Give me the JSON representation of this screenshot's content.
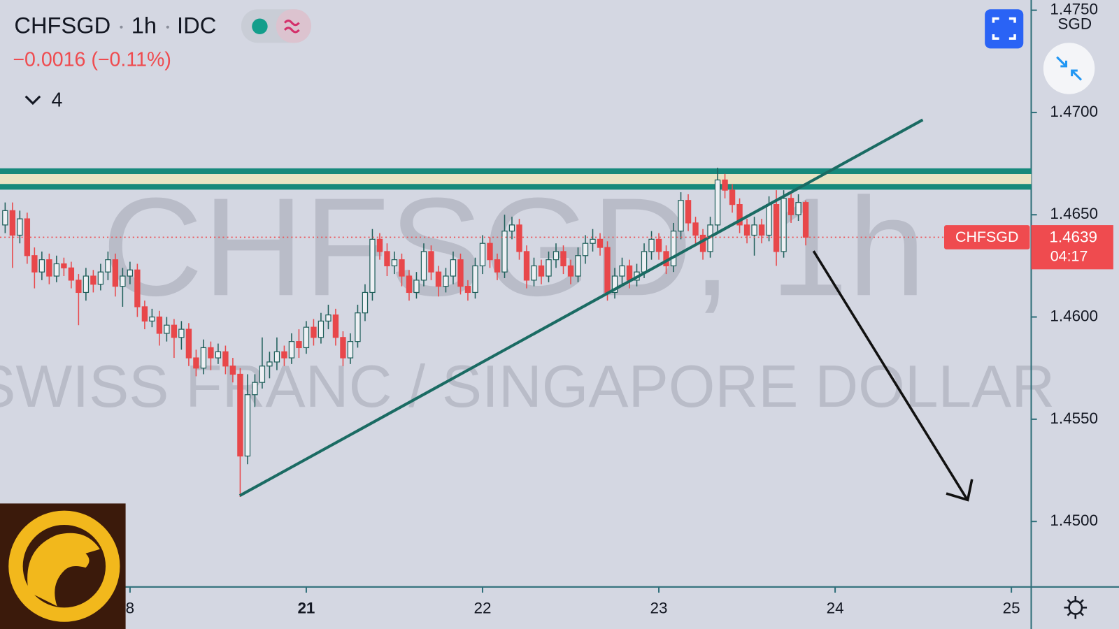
{
  "header": {
    "symbol": "CHFSGD",
    "interval": "1h",
    "source": "IDC",
    "change": "−0.0016 (−0.11%)",
    "indicator_count": 4,
    "currency": "SGD"
  },
  "chart_data": {
    "type": "candlestick",
    "watermark_title": "CHFSGD, 1h",
    "watermark_subtitle": "SWISS FRANC / SINGAPORE DOLLAR",
    "up_color": "#eef0f4",
    "down_color": "#e8474a",
    "outline_color": "#1f5f5a",
    "xlim": [
      -41.7,
      98.7
    ],
    "ylim": [
      1.4468,
      1.4755
    ],
    "xticks": [
      {
        "value": -24,
        "label": "8"
      },
      {
        "value": 0,
        "label": "21"
      },
      {
        "value": 24,
        "label": "22"
      },
      {
        "value": 48,
        "label": "23"
      },
      {
        "value": 72,
        "label": "24"
      },
      {
        "value": 96,
        "label": "25"
      }
    ],
    "yticks": [
      {
        "value": 1.475,
        "label": "1.4750"
      },
      {
        "value": 1.47,
        "label": "1.4700"
      },
      {
        "value": 1.465,
        "label": "1.4650"
      },
      {
        "value": 1.46,
        "label": "1.4600"
      },
      {
        "value": 1.455,
        "label": "1.4550"
      },
      {
        "value": 1.45,
        "label": "1.4500"
      }
    ],
    "last_price": {
      "symbol": "CHFSGD",
      "value": 1.4639,
      "countdown": "04:17",
      "color": "#ef4b4f"
    },
    "x": [
      -41,
      -40,
      -39,
      -38,
      -37,
      -36,
      -35,
      -34,
      -33,
      -32,
      -31,
      -30,
      -29,
      -28,
      -27,
      -26,
      -25,
      -24,
      -23,
      -22,
      -21,
      -20,
      -19,
      -18,
      -17,
      -16,
      -15,
      -14,
      -13,
      -12,
      -11,
      -10,
      -9,
      -8,
      -7,
      -6,
      -5,
      -4,
      -3,
      -2,
      -1,
      0,
      1,
      2,
      3,
      4,
      5,
      6,
      7,
      8,
      9,
      10,
      11,
      12,
      13,
      14,
      15,
      16,
      17,
      18,
      19,
      20,
      21,
      22,
      23,
      24,
      25,
      26,
      27,
      28,
      29,
      30,
      31,
      32,
      33,
      34,
      35,
      36,
      37,
      38,
      39,
      40,
      41,
      42,
      43,
      44,
      45,
      46,
      47,
      48,
      49,
      50,
      51,
      52,
      53,
      54,
      55,
      56,
      57,
      58,
      59,
      60,
      61,
      62,
      63,
      64,
      65,
      66,
      67,
      68
    ],
    "ohlc": [
      [
        1.4645,
        1.4656,
        1.4641,
        1.4652
      ],
      [
        1.4652,
        1.4656,
        1.4624,
        1.464
      ],
      [
        1.464,
        1.4652,
        1.4636,
        1.4648
      ],
      [
        1.4648,
        1.4651,
        1.4626,
        1.463
      ],
      [
        1.463,
        1.4634,
        1.4614,
        1.4622
      ],
      [
        1.4622,
        1.4632,
        1.4618,
        1.4628
      ],
      [
        1.4628,
        1.4631,
        1.4616,
        1.462
      ],
      [
        1.462,
        1.463,
        1.4617,
        1.4626
      ],
      [
        1.4626,
        1.4629,
        1.462,
        1.4624
      ],
      [
        1.4624,
        1.4627,
        1.4614,
        1.4618
      ],
      [
        1.4618,
        1.4621,
        1.4596,
        1.4612
      ],
      [
        1.4612,
        1.4624,
        1.4608,
        1.462
      ],
      [
        1.462,
        1.4623,
        1.4612,
        1.4616
      ],
      [
        1.4616,
        1.4626,
        1.4613,
        1.4622
      ],
      [
        1.4622,
        1.4632,
        1.4618,
        1.4628
      ],
      [
        1.4628,
        1.4631,
        1.461,
        1.4615
      ],
      [
        1.4615,
        1.4624,
        1.4605,
        1.462
      ],
      [
        1.462,
        1.4627,
        1.4616,
        1.4623
      ],
      [
        1.4623,
        1.4626,
        1.46,
        1.4605
      ],
      [
        1.4605,
        1.4608,
        1.4594,
        1.4598
      ],
      [
        1.4598,
        1.4604,
        1.4595,
        1.46
      ],
      [
        1.46,
        1.4603,
        1.4586,
        1.4592
      ],
      [
        1.4592,
        1.46,
        1.4588,
        1.4596
      ],
      [
        1.4596,
        1.4599,
        1.458,
        1.459
      ],
      [
        1.459,
        1.4598,
        1.4584,
        1.4594
      ],
      [
        1.4594,
        1.4597,
        1.4576,
        1.458
      ],
      [
        1.458,
        1.4584,
        1.4571,
        1.4575
      ],
      [
        1.4575,
        1.4589,
        1.4572,
        1.4585
      ],
      [
        1.4585,
        1.4588,
        1.4574,
        1.458
      ],
      [
        1.458,
        1.4587,
        1.4577,
        1.4583
      ],
      [
        1.4583,
        1.4586,
        1.4572,
        1.4576
      ],
      [
        1.4576,
        1.458,
        1.4568,
        1.4572
      ],
      [
        1.4572,
        1.4575,
        1.4512,
        1.4532
      ],
      [
        1.4532,
        1.4572,
        1.4528,
        1.4562
      ],
      [
        1.4562,
        1.4572,
        1.4556,
        1.4568
      ],
      [
        1.4568,
        1.459,
        1.4565,
        1.4576
      ],
      [
        1.4576,
        1.4583,
        1.457,
        1.4578
      ],
      [
        1.4578,
        1.459,
        1.4574,
        1.4583
      ],
      [
        1.4583,
        1.4586,
        1.4576,
        1.458
      ],
      [
        1.458,
        1.4592,
        1.4577,
        1.4588
      ],
      [
        1.4588,
        1.4594,
        1.458,
        1.4585
      ],
      [
        1.4585,
        1.4598,
        1.4582,
        1.4595
      ],
      [
        1.4595,
        1.4599,
        1.4586,
        1.459
      ],
      [
        1.459,
        1.4602,
        1.4587,
        1.4598
      ],
      [
        1.4598,
        1.4606,
        1.4594,
        1.4601
      ],
      [
        1.4601,
        1.4604,
        1.4586,
        1.459
      ],
      [
        1.459,
        1.4593,
        1.4576,
        1.458
      ],
      [
        1.458,
        1.4592,
        1.4577,
        1.4588
      ],
      [
        1.4588,
        1.4606,
        1.4585,
        1.4602
      ],
      [
        1.4602,
        1.4616,
        1.4598,
        1.4612
      ],
      [
        1.4612,
        1.4643,
        1.4608,
        1.4638
      ],
      [
        1.4638,
        1.4641,
        1.4628,
        1.4632
      ],
      [
        1.4632,
        1.4636,
        1.462,
        1.4625
      ],
      [
        1.4625,
        1.4632,
        1.4621,
        1.4628
      ],
      [
        1.4628,
        1.4631,
        1.4615,
        1.462
      ],
      [
        1.462,
        1.4623,
        1.4608,
        1.4612
      ],
      [
        1.4612,
        1.4622,
        1.4609,
        1.4618
      ],
      [
        1.4618,
        1.4636,
        1.4615,
        1.4632
      ],
      [
        1.4632,
        1.4635,
        1.4618,
        1.4622
      ],
      [
        1.4622,
        1.4625,
        1.461,
        1.4615
      ],
      [
        1.4615,
        1.4624,
        1.4612,
        1.462
      ],
      [
        1.462,
        1.4632,
        1.4616,
        1.4628
      ],
      [
        1.4628,
        1.4631,
        1.4611,
        1.4615
      ],
      [
        1.4615,
        1.4618,
        1.4608,
        1.4612
      ],
      [
        1.4612,
        1.4629,
        1.4609,
        1.4625
      ],
      [
        1.4625,
        1.464,
        1.4621,
        1.4636
      ],
      [
        1.4636,
        1.4639,
        1.4624,
        1.4628
      ],
      [
        1.4628,
        1.4631,
        1.4618,
        1.4622
      ],
      [
        1.4622,
        1.465,
        1.4619,
        1.4642
      ],
      [
        1.4642,
        1.4649,
        1.4638,
        1.4645
      ],
      [
        1.4645,
        1.4648,
        1.4628,
        1.4632
      ],
      [
        1.4632,
        1.4635,
        1.4614,
        1.4618
      ],
      [
        1.4618,
        1.4629,
        1.4615,
        1.4625
      ],
      [
        1.4625,
        1.4628,
        1.4616,
        1.462
      ],
      [
        1.462,
        1.4632,
        1.4617,
        1.4628
      ],
      [
        1.4628,
        1.4636,
        1.4624,
        1.4632
      ],
      [
        1.4632,
        1.4635,
        1.4621,
        1.4625
      ],
      [
        1.4625,
        1.4628,
        1.4616,
        1.462
      ],
      [
        1.462,
        1.4634,
        1.4617,
        1.463
      ],
      [
        1.463,
        1.464,
        1.4626,
        1.4636
      ],
      [
        1.4636,
        1.4643,
        1.4632,
        1.4638
      ],
      [
        1.4638,
        1.4641,
        1.463,
        1.4634
      ],
      [
        1.4634,
        1.4637,
        1.4608,
        1.4612
      ],
      [
        1.4612,
        1.4624,
        1.4609,
        1.462
      ],
      [
        1.462,
        1.4629,
        1.4616,
        1.4625
      ],
      [
        1.4625,
        1.4628,
        1.4614,
        1.4618
      ],
      [
        1.4618,
        1.4626,
        1.4615,
        1.4622
      ],
      [
        1.4622,
        1.4636,
        1.4619,
        1.4632
      ],
      [
        1.4632,
        1.4642,
        1.4628,
        1.4638
      ],
      [
        1.4638,
        1.4641,
        1.4628,
        1.4632
      ],
      [
        1.4632,
        1.4635,
        1.4621,
        1.4625
      ],
      [
        1.4625,
        1.4646,
        1.4622,
        1.4642
      ],
      [
        1.4642,
        1.4661,
        1.4638,
        1.4657
      ],
      [
        1.4657,
        1.466,
        1.4642,
        1.4646
      ],
      [
        1.4646,
        1.4649,
        1.4636,
        1.464
      ],
      [
        1.464,
        1.4643,
        1.4628,
        1.4632
      ],
      [
        1.4632,
        1.4649,
        1.4629,
        1.4645
      ],
      [
        1.4645,
        1.4673,
        1.4642,
        1.4667
      ],
      [
        1.4667,
        1.467,
        1.4658,
        1.4662
      ],
      [
        1.4662,
        1.4665,
        1.4651,
        1.4655
      ],
      [
        1.4655,
        1.4658,
        1.4641,
        1.4645
      ],
      [
        1.4645,
        1.4648,
        1.4636,
        1.464
      ],
      [
        1.464,
        1.4649,
        1.463,
        1.4645
      ],
      [
        1.4645,
        1.4648,
        1.4636,
        1.464
      ],
      [
        1.464,
        1.4659,
        1.4637,
        1.4655
      ],
      [
        1.4655,
        1.4662,
        1.4625,
        1.4632
      ],
      [
        1.4632,
        1.4662,
        1.4629,
        1.4658
      ],
      [
        1.4658,
        1.4661,
        1.4646,
        1.465
      ],
      [
        1.465,
        1.466,
        1.4647,
        1.4656
      ],
      [
        1.4656,
        1.4657,
        1.4635,
        1.4639
      ]
    ]
  }
}
